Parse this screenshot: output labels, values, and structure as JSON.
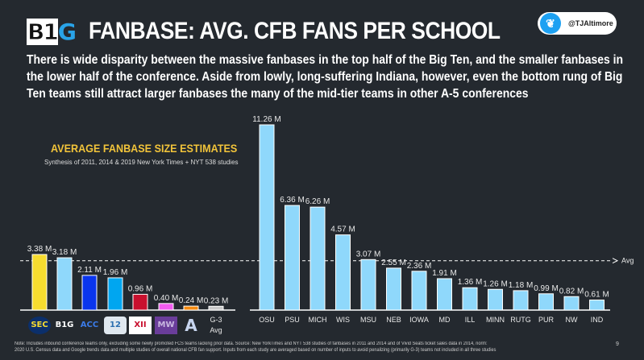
{
  "header": {
    "logo_text_black": "B1",
    "logo_text_blue": "G",
    "title": "FANBASE:  AVG. CFB FANS PER SCHOOL",
    "subtitle": "There is wide disparity between the massive fanbases in the top half of the Big Ten, and the smaller fanbases in the lower half of the conference.  Aside from lowly, long-suffering Indiana, however, even the bottom rung of Big Ten teams still attract larger fanbases the many of the mid-tier teams in other A-5 conferences",
    "twitter_icon": "twitter-bird-icon",
    "twitter_handle": "@TJAltimore"
  },
  "chart_data": [
    {
      "type": "bar",
      "title": "AVERAGE FANBASE SIZE ESTIMATES",
      "subtitle": "Synthesis of 2011, 2014 & 2019 New York Times + NYT 538 studies",
      "categories": [
        "SEC",
        "Big Ten",
        "ACC",
        "Pac-12",
        "Big 12",
        "Mountain West",
        "AAC",
        "G-3 Avg"
      ],
      "category_logos": [
        "SEC",
        "B1G",
        "ACC",
        "12",
        "XII",
        "MW",
        "A",
        ""
      ],
      "category_text": [
        "",
        "",
        "",
        "",
        "",
        "",
        "",
        "G-3 Avg"
      ],
      "values": [
        3.38,
        3.18,
        2.11,
        1.96,
        0.96,
        0.4,
        0.24,
        0.23
      ],
      "data_labels": [
        "3.38 M",
        "3.18 M",
        "2.11 M",
        "1.96 M",
        "0.96 M",
        "0.40 M",
        "0.24 M",
        "0.23 M"
      ],
      "colors": [
        "#f7dc2f",
        "#8fd8fb",
        "#0a35ee",
        "#00a6f0",
        "#c8102e",
        "#f25cf0",
        "#f58a10",
        "#c8c8c8"
      ],
      "unit": "M",
      "ylim": [
        0,
        11.5
      ],
      "grid": false
    },
    {
      "type": "bar",
      "categories": [
        "OSU",
        "PSU",
        "MICH",
        "WIS",
        "MSU",
        "NEB",
        "IOWA",
        "MD",
        "ILL",
        "MINN",
        "RUTG",
        "PUR",
        "NW",
        "IND"
      ],
      "values": [
        11.26,
        6.36,
        6.26,
        4.57,
        3.07,
        2.55,
        2.36,
        1.91,
        1.36,
        1.26,
        1.18,
        0.99,
        0.82,
        0.61
      ],
      "data_labels": [
        "11.26 M",
        "6.36 M",
        "6.26 M",
        "4.57 M",
        "3.07 M",
        "2.55 M",
        "2.36 M",
        "1.91 M",
        "1.36 M",
        "1.26 M",
        "1.18 M",
        "0.99 M",
        "0.82 M",
        "0.61 M"
      ],
      "color": "#8fd8fb",
      "unit": "M",
      "ylim": [
        0,
        11.5
      ],
      "reference_line": {
        "label": "Avg",
        "value": 3.0,
        "style": "dashed"
      },
      "grid": false
    }
  ],
  "footer": {
    "note_line1": "Note:  Includes inbound conference teams only, excluding some newly promoted FCS teams lacking prior data.  Source:  New YorkTimes and NYT 538 studies of fanbases in 2011 and 2014 and of Vivid Seats ticket sales data in 2014, norm:",
    "note_line2": "2020 U.S. Census data and Google trends data and multiple studies of overall national CFB fan support.  Inputs from each study are averaged based on number of inputs to avoid penalizing (primarily G-3) teams not included in all three studies",
    "page_number": "9"
  }
}
